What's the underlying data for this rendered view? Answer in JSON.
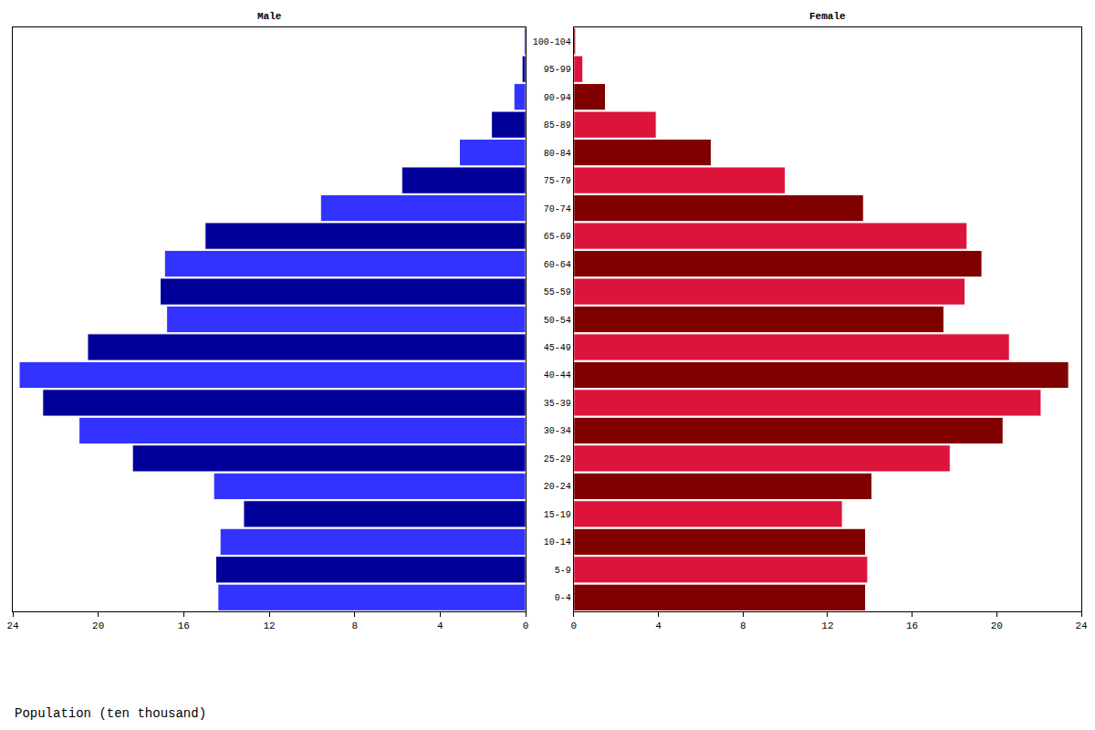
{
  "chart_data": {
    "type": "bar",
    "orientation": "horizontal",
    "x_label": "Population (ten thousand)",
    "categories": [
      "0-4",
      "5-9",
      "10-14",
      "15-19",
      "20-24",
      "25-29",
      "30-34",
      "35-39",
      "40-44",
      "45-49",
      "50-54",
      "55-59",
      "60-64",
      "65-69",
      "70-74",
      "75-79",
      "80-84",
      "85-89",
      "90-94",
      "95-99",
      "100-104"
    ],
    "series": [
      {
        "name": "Male",
        "values": [
          14.4,
          14.5,
          14.3,
          13.2,
          14.6,
          18.4,
          20.9,
          22.6,
          23.7,
          20.5,
          16.8,
          17.1,
          16.9,
          15.0,
          9.6,
          5.8,
          3.1,
          1.6,
          0.55,
          0.17,
          0.08
        ],
        "colors": [
          "#3333ff",
          "#000099",
          "#3333ff",
          "#000099",
          "#3333ff",
          "#000099",
          "#3333ff",
          "#000099",
          "#3333ff",
          "#000099",
          "#3333ff",
          "#000099",
          "#3333ff",
          "#000099",
          "#3333ff",
          "#000099",
          "#3333ff",
          "#000099",
          "#3333ff",
          "#000099",
          "#3333ff"
        ]
      },
      {
        "name": "Female",
        "values": [
          13.8,
          13.9,
          13.8,
          12.7,
          14.1,
          17.8,
          20.3,
          22.1,
          23.4,
          20.6,
          17.5,
          18.5,
          19.3,
          18.6,
          13.7,
          10.0,
          6.5,
          3.9,
          1.5,
          0.43,
          0.09
        ],
        "colors": [
          "#800000",
          "#dc143c",
          "#800000",
          "#dc143c",
          "#800000",
          "#dc143c",
          "#800000",
          "#dc143c",
          "#800000",
          "#dc143c",
          "#800000",
          "#dc143c",
          "#800000",
          "#dc143c",
          "#800000",
          "#dc143c",
          "#800000",
          "#dc143c",
          "#800000",
          "#dc143c",
          "#800000"
        ]
      }
    ],
    "xlim": [
      0,
      24
    ],
    "xticks": [
      0,
      4,
      8,
      12,
      16,
      20,
      24
    ],
    "grid": false
  }
}
